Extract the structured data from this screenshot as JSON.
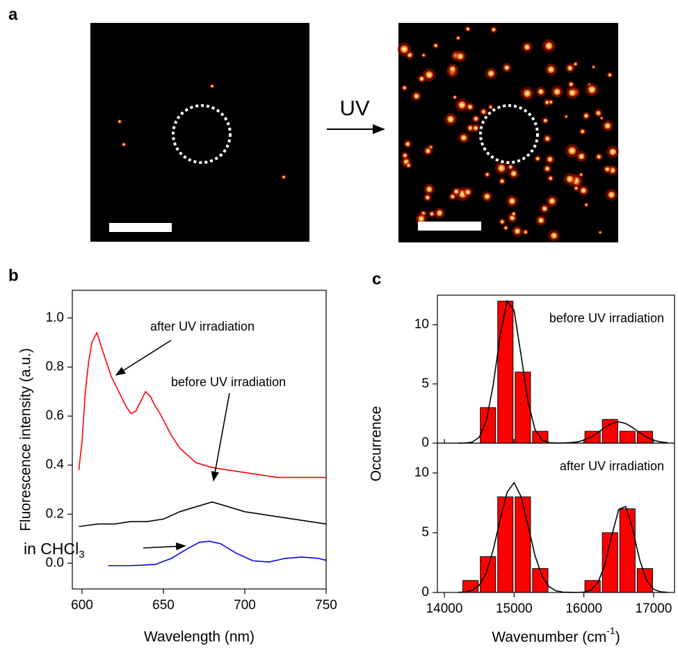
{
  "panel_a": {
    "label": "a",
    "arrow_label": "UV"
  },
  "chart_data": [
    {
      "type": "line",
      "panel_label": "b",
      "xlabel": "Wavelength (nm)",
      "ylabel": "Fluorescence intensity (a.u.)",
      "xlim": [
        594,
        750
      ],
      "xticks": [
        600,
        650,
        700,
        750
      ],
      "ylim": [
        -0.105,
        1.113
      ],
      "yticks": [
        {
          "value": 0,
          "label": "0.0"
        },
        0.2,
        0.4,
        0.6,
        0.8,
        {
          "value": 1,
          "label": "1.0"
        }
      ],
      "series": [
        {
          "color": "#ff0000",
          "x": [
            598,
            600,
            602,
            604,
            606,
            609,
            612,
            615,
            618,
            621,
            624,
            627,
            630,
            633,
            636,
            639,
            642,
            645,
            648,
            651,
            655,
            660,
            665,
            670,
            675,
            680,
            690,
            700,
            710,
            720,
            730,
            740,
            750
          ],
          "values": [
            0.38,
            0.5,
            0.7,
            0.82,
            0.9,
            0.94,
            0.88,
            0.82,
            0.76,
            0.72,
            0.68,
            0.64,
            0.61,
            0.62,
            0.66,
            0.7,
            0.68,
            0.64,
            0.61,
            0.57,
            0.52,
            0.47,
            0.44,
            0.41,
            0.4,
            0.39,
            0.38,
            0.37,
            0.36,
            0.35,
            0.35,
            0.35,
            0.35
          ]
        },
        {
          "color": "#000000",
          "x": [
            598,
            610,
            620,
            630,
            640,
            650,
            660,
            670,
            680,
            690,
            700,
            710,
            720,
            730,
            740,
            750
          ],
          "values": [
            0.15,
            0.16,
            0.16,
            0.17,
            0.17,
            0.18,
            0.21,
            0.23,
            0.25,
            0.23,
            0.21,
            0.2,
            0.19,
            0.18,
            0.17,
            0.16
          ]
        },
        {
          "color": "#0000ff",
          "x": [
            616,
            630,
            645,
            655,
            665,
            672,
            678,
            685,
            695,
            705,
            715,
            725,
            735,
            745,
            750
          ],
          "values": [
            -0.01,
            -0.01,
            -0.005,
            0.02,
            0.06,
            0.085,
            0.09,
            0.08,
            0.04,
            0.01,
            0.005,
            0.02,
            0.025,
            0.02,
            0.012
          ]
        }
      ],
      "annotations": [
        {
          "text": "after UV irradiation"
        },
        {
          "text": "before UV irradiation"
        },
        {
          "text": "in CHCl",
          "sub": "3"
        }
      ]
    },
    {
      "type": "histogram",
      "panel_label": "c",
      "annotation": "before UV irradiation",
      "xlim": [
        13900,
        17300
      ],
      "xticks": [
        14000,
        15000,
        16000,
        17000
      ],
      "ylim": [
        0,
        12.5
      ],
      "yticks": [
        0,
        5,
        10
      ],
      "color": "#ff0000",
      "bins": [
        14250,
        14500,
        14750,
        15000,
        15250,
        15500,
        15750,
        16000,
        16250,
        16500,
        16750,
        17000
      ],
      "values": [
        0,
        3,
        12,
        6,
        1,
        0,
        0,
        1,
        2,
        1,
        1
      ],
      "fit": {
        "color": "#000000",
        "x": [
          14200,
          14300,
          14400,
          14500,
          14600,
          14700,
          14800,
          14900,
          15000,
          15100,
          15200,
          15300,
          15400,
          15500,
          15600,
          15700,
          15800,
          15900,
          16000,
          16100,
          16200,
          16300,
          16400,
          16500,
          16600,
          16700,
          16800,
          16900,
          17000,
          17100,
          17200
        ],
        "values": [
          0,
          0.01,
          0.09,
          0.5,
          1.85,
          4.89,
          9.11,
          12.01,
          11.21,
          7.4,
          3.46,
          1.14,
          0.27,
          0.04,
          0.01,
          0.01,
          0.04,
          0.1,
          0.24,
          0.5,
          0.88,
          1.31,
          1.66,
          1.8,
          1.66,
          1.31,
          0.88,
          0.5,
          0.24,
          0.1,
          0.04
        ]
      }
    },
    {
      "type": "histogram",
      "annotation": "after UV irradiation",
      "ylabel": "Occurrence",
      "xlabel": {
        "text": "Wavenumber (cm",
        "sup": "-1",
        "tail": ")"
      },
      "xlim": [
        13900,
        17300
      ],
      "xticks": [
        14000,
        15000,
        16000,
        17000
      ],
      "ylim": [
        0,
        12.5
      ],
      "yticks": [
        0,
        5,
        10
      ],
      "color": "#ff0000",
      "bins": [
        14250,
        14500,
        14750,
        15000,
        15250,
        15500,
        15750,
        16000,
        16250,
        16500,
        16750,
        17000
      ],
      "values": [
        1,
        3,
        8,
        8,
        2,
        0,
        0,
        1,
        5,
        7,
        2
      ],
      "fit": {
        "color": "#000000",
        "x": [
          14200,
          14300,
          14400,
          14500,
          14600,
          14700,
          14800,
          14900,
          15000,
          15100,
          15200,
          15300,
          15400,
          15500,
          15600,
          15700,
          15800,
          15900,
          16000,
          16100,
          16200,
          16300,
          16400,
          16500,
          16600,
          16700,
          16800,
          16900,
          17000,
          17100,
          17200
        ],
        "values": [
          0.01,
          0.04,
          0.18,
          0.6,
          1.64,
          3.55,
          6.11,
          8.39,
          9.19,
          8.02,
          5.58,
          3.09,
          1.37,
          0.48,
          0.14,
          0.03,
          0.01,
          0,
          0.03,
          0.19,
          0.79,
          2.3,
          4.75,
          6.95,
          7.2,
          5.27,
          2.73,
          1,
          0.26,
          0.05,
          0.01
        ]
      }
    }
  ]
}
